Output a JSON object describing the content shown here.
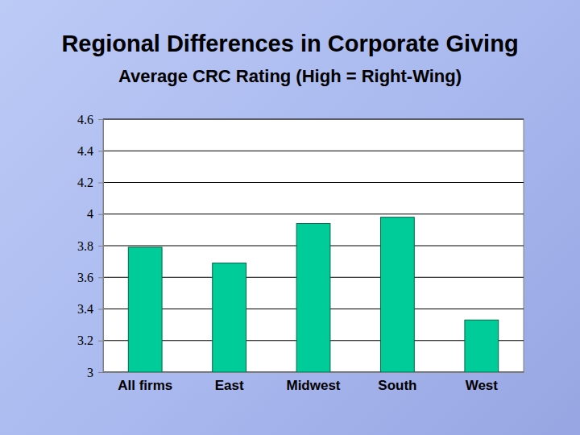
{
  "chart_data": {
    "type": "bar",
    "title": "Regional Differences in Corporate Giving",
    "subtitle": "Average CRC Rating (High = Right-Wing)",
    "categories": [
      "All firms",
      "East",
      "Midwest",
      "South",
      "West"
    ],
    "values": [
      3.79,
      3.69,
      3.94,
      3.98,
      3.33
    ],
    "color": "#00cc99",
    "ylim": [
      3,
      4.6
    ],
    "yticks": [
      3,
      3.2,
      3.4,
      3.6,
      3.8,
      4,
      4.2,
      4.4,
      4.6
    ],
    "grid": true
  }
}
